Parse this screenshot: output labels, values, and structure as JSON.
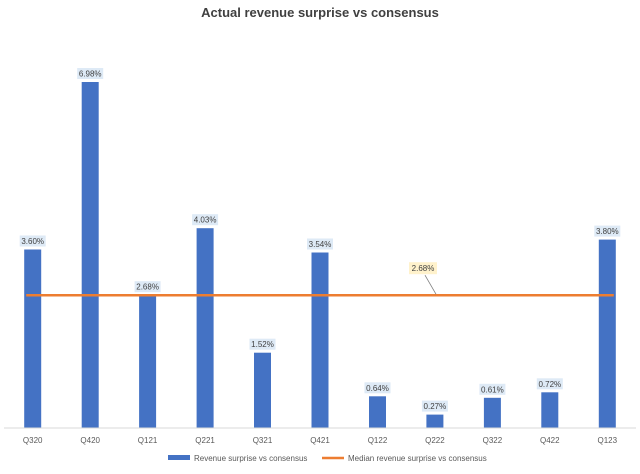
{
  "chart_data": {
    "type": "bar",
    "title": "Actual revenue surprise vs consensus",
    "categories": [
      "Q320",
      "Q420",
      "Q121",
      "Q221",
      "Q321",
      "Q421",
      "Q122",
      "Q222",
      "Q322",
      "Q422",
      "Q123"
    ],
    "series": [
      {
        "name": "Revenue surprise vs consensus",
        "type": "bar",
        "values": [
          3.6,
          6.98,
          2.68,
          4.03,
          1.52,
          3.54,
          0.64,
          0.27,
          0.61,
          0.72,
          3.8
        ],
        "labels": [
          "3.60%",
          "6.98%",
          "2.68%",
          "4.03%",
          "1.52%",
          "3.54%",
          "0.64%",
          "0.27%",
          "0.61%",
          "0.72%",
          "3.80%"
        ],
        "color": "#4472C4"
      },
      {
        "name": "Median revenue surprise vs consensus",
        "type": "line",
        "value": 2.68,
        "label": "2.68%",
        "color": "#ED7D31"
      }
    ],
    "ylim": [
      0,
      7.2
    ],
    "grid": false,
    "legend_position": "bottom",
    "data_label_fill": "#DEEAF6",
    "median_label_fill": "#FFF2CC"
  }
}
